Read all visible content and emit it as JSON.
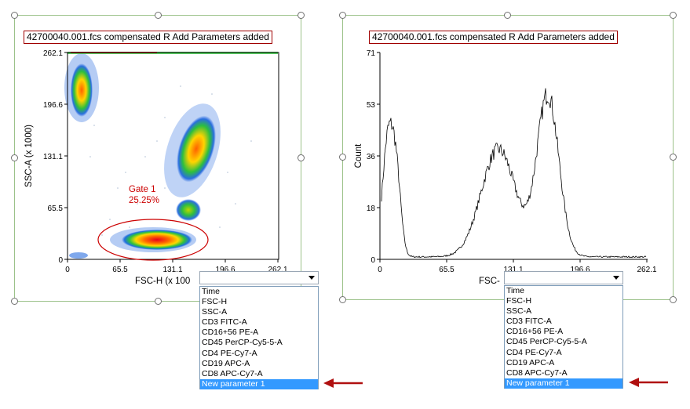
{
  "plot1": {
    "title": "42700040.001.fcs compensated R Add Parameters added",
    "x_axis_label": "FSC-H (x 100",
    "y_axis_label": "SSC-A (x 1000)",
    "x_ticks": [
      "0",
      "65.5",
      "131.1",
      "196.6",
      "262.1"
    ],
    "y_ticks": [
      "0",
      "65.5",
      "131.1",
      "196.6",
      "262.1"
    ],
    "gate_label_line1": "Gate 1",
    "gate_label_line2": "25.25%",
    "gate_color": "#cc0000"
  },
  "plot2": {
    "title": "42700040.001.fcs compensated R Add Parameters added",
    "x_axis_label": "FSC-",
    "y_axis_label": "Count",
    "x_ticks": [
      "0",
      "65.5",
      "131.1",
      "196.6",
      "262.1"
    ],
    "y_ticks": [
      "0",
      "18",
      "36",
      "53",
      "71"
    ]
  },
  "dropdown1": {
    "selected_value": "",
    "options": [
      "Time",
      "FSC-H",
      "SSC-A",
      "CD3 FITC-A",
      "CD16+56 PE-A",
      "CD45 PerCP-Cy5-5-A",
      "CD4 PE-Cy7-A",
      "CD19 APC-A",
      "CD8 APC-Cy7-A",
      "New parameter 1"
    ],
    "highlighted_option": "New parameter 1"
  },
  "dropdown2": {
    "selected_value": "",
    "options": [
      "Time",
      "FSC-H",
      "SSC-A",
      "CD3 FITC-A",
      "CD16+56 PE-A",
      "CD45 PerCP-Cy5-5-A",
      "CD4 PE-Cy7-A",
      "CD19 APC-A",
      "CD8 APC-Cy7-A",
      "New parameter 1"
    ],
    "highlighted_option": "New parameter 1"
  },
  "colors": {
    "frame": "#9cc28a",
    "title_border": "#a00000",
    "arrow": "#b01010",
    "selection": "#3399ff"
  },
  "icons": {
    "dropdown_arrow": "triangle-down",
    "annotation_arrow": "arrow-left"
  }
}
